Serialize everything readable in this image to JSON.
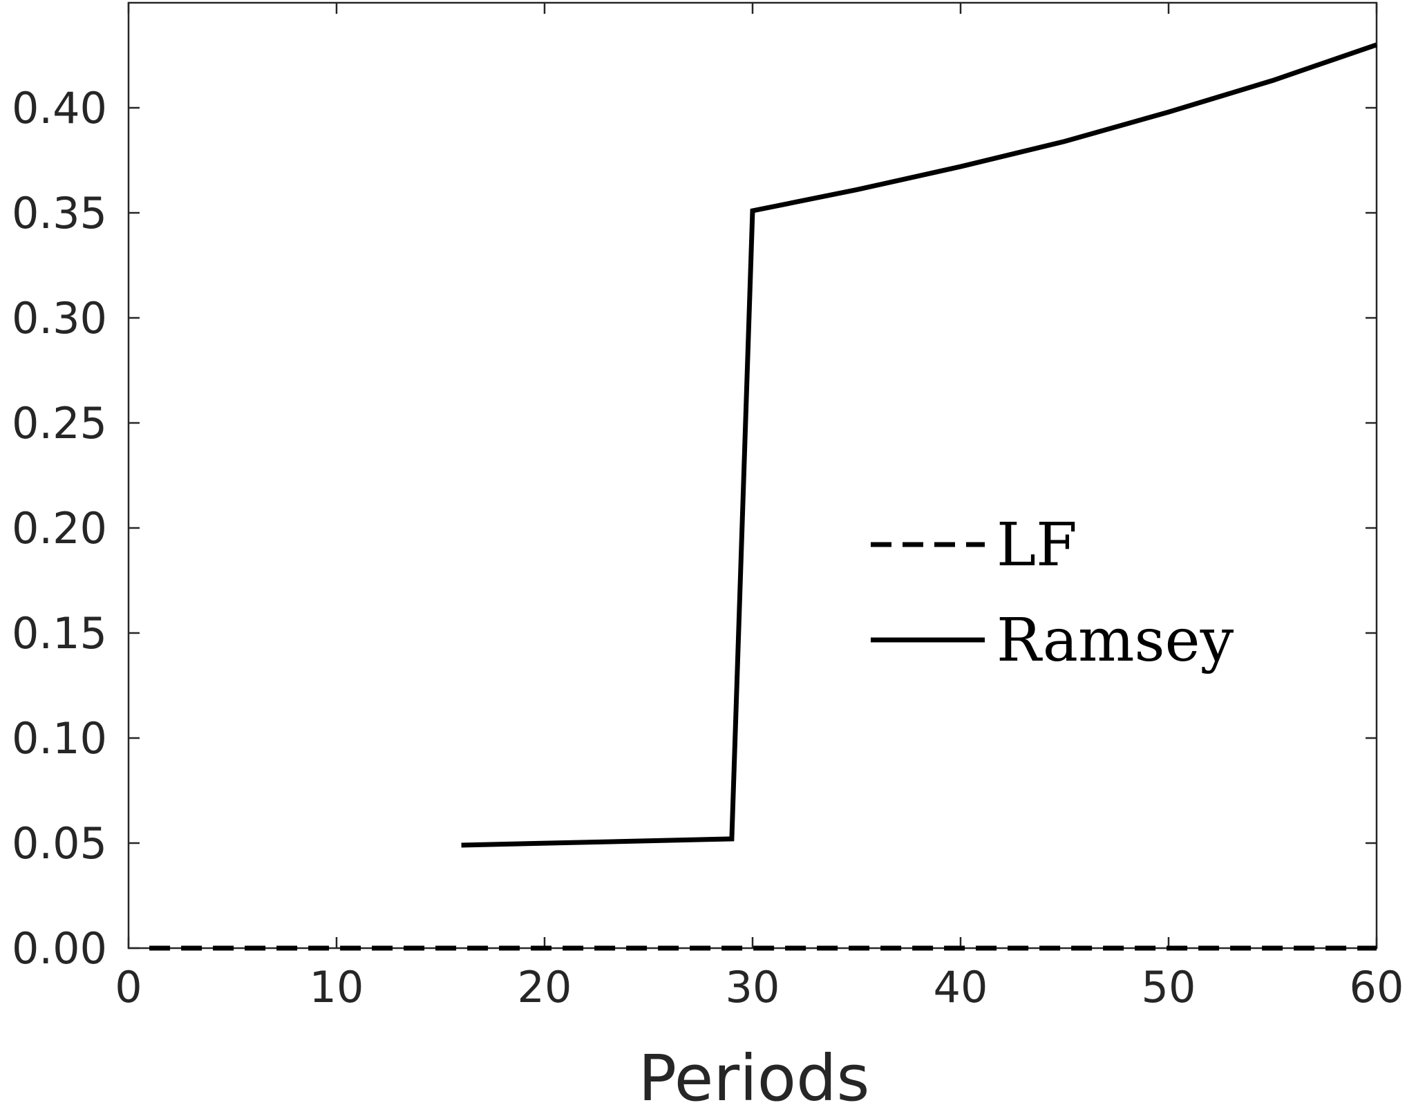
{
  "chart_data": {
    "type": "line",
    "title": "",
    "xlabel": "Periods",
    "ylabel": "",
    "xlim": [
      0,
      60
    ],
    "ylim": [
      0,
      0.45
    ],
    "xticks": [
      0,
      10,
      20,
      30,
      40,
      50,
      60
    ],
    "xtick_labels": [
      "0",
      "10",
      "20",
      "30",
      "40",
      "50",
      "60"
    ],
    "yticks": [
      0,
      0.05,
      0.1,
      0.15,
      0.2,
      0.25,
      0.3,
      0.35,
      0.4
    ],
    "ytick_labels": [
      "0.00",
      "0.05",
      "0.10",
      "0.15",
      "0.20",
      "0.25",
      "0.30",
      "0.35",
      "0.40"
    ],
    "grid": false,
    "legend_position": "center-right",
    "series": [
      {
        "name": "LF",
        "style": "dashed",
        "color": "#000000",
        "x": [
          1,
          60
        ],
        "y": [
          0.0,
          0.0
        ]
      },
      {
        "name": "Ramsey",
        "style": "solid",
        "color": "#000000",
        "x": [
          16,
          29,
          30,
          35,
          40,
          45,
          50,
          55,
          60
        ],
        "y": [
          0.049,
          0.052,
          0.351,
          0.361,
          0.372,
          0.384,
          0.398,
          0.413,
          0.43
        ]
      }
    ]
  }
}
